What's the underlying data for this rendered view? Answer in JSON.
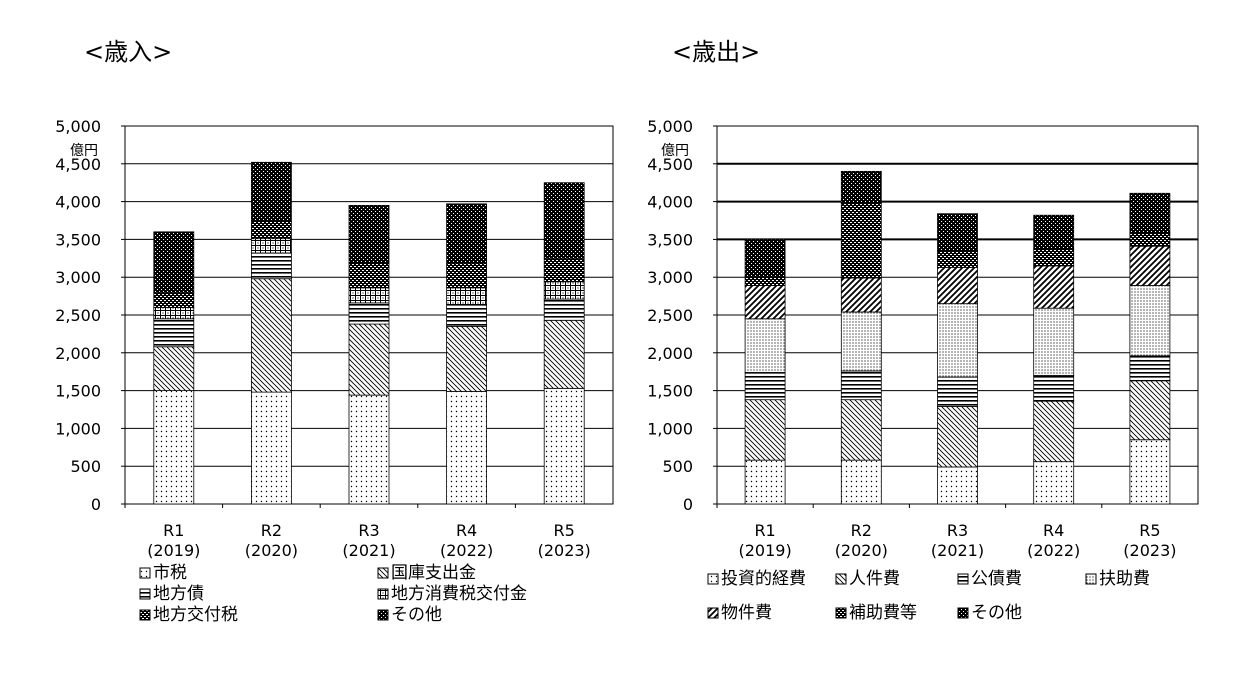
{
  "chart_data": [
    {
      "type": "bar",
      "stacked": true,
      "title": "<歳入>",
      "unit": "億円",
      "ylim": [
        0,
        5000
      ],
      "yticks": [
        "0",
        "500",
        "1,000",
        "1,500",
        "2,000",
        "2,500",
        "3,000",
        "3,500",
        "4,000",
        "4,500",
        "5,000"
      ],
      "categories": [
        "R1\n(2019)",
        "R2\n(2020)",
        "R3\n(2021)",
        "R4\n(2022)",
        "R5\n(2023)"
      ],
      "series": [
        {
          "name": "市税",
          "pattern": "dots",
          "values": [
            1500,
            1480,
            1440,
            1490,
            1530
          ]
        },
        {
          "name": "国庫支出金",
          "pattern": "diag",
          "values": [
            580,
            1500,
            940,
            860,
            900
          ]
        },
        {
          "name": "地方債",
          "pattern": "hlines",
          "values": [
            370,
            340,
            280,
            290,
            280
          ]
        },
        {
          "name": "地方消費税交付金",
          "pattern": "grid",
          "values": [
            150,
            190,
            200,
            220,
            230
          ]
        },
        {
          "name": "地方交付税",
          "pattern": "dense",
          "values": [
            200,
            230,
            330,
            320,
            310
          ]
        },
        {
          "name": "その他",
          "pattern": "dark",
          "values": [
            800,
            780,
            760,
            790,
            1000
          ]
        }
      ],
      "legend_position": "bottom"
    },
    {
      "type": "bar",
      "stacked": true,
      "title": "<歳出>",
      "unit": "億円",
      "ylim": [
        0,
        5000
      ],
      "yticks": [
        "0",
        "500",
        "1,000",
        "1,500",
        "2,000",
        "2,500",
        "3,000",
        "3,500",
        "4,000",
        "4,500",
        "5,000"
      ],
      "categories": [
        "R1\n(2019)",
        "R2\n(2020)",
        "R3\n(2021)",
        "R4\n(2022)",
        "R5\n(2023)"
      ],
      "series": [
        {
          "name": "投資的経費",
          "pattern": "dots",
          "values": [
            580,
            580,
            490,
            560,
            850
          ]
        },
        {
          "name": "人件費",
          "pattern": "diag",
          "values": [
            800,
            800,
            800,
            800,
            780
          ]
        },
        {
          "name": "公債費",
          "pattern": "hlines",
          "values": [
            360,
            380,
            390,
            340,
            330
          ]
        },
        {
          "name": "扶助費",
          "pattern": "stipple",
          "values": [
            710,
            780,
            970,
            890,
            930
          ]
        },
        {
          "name": "物件費",
          "pattern": "bdiag",
          "values": [
            440,
            450,
            480,
            560,
            520
          ]
        },
        {
          "name": "補助費等",
          "pattern": "dense",
          "values": [
            120,
            990,
            220,
            220,
            180
          ]
        },
        {
          "name": "その他",
          "pattern": "dark",
          "values": [
            490,
            420,
            490,
            450,
            520
          ]
        }
      ],
      "legend_position": "bottom"
    }
  ]
}
